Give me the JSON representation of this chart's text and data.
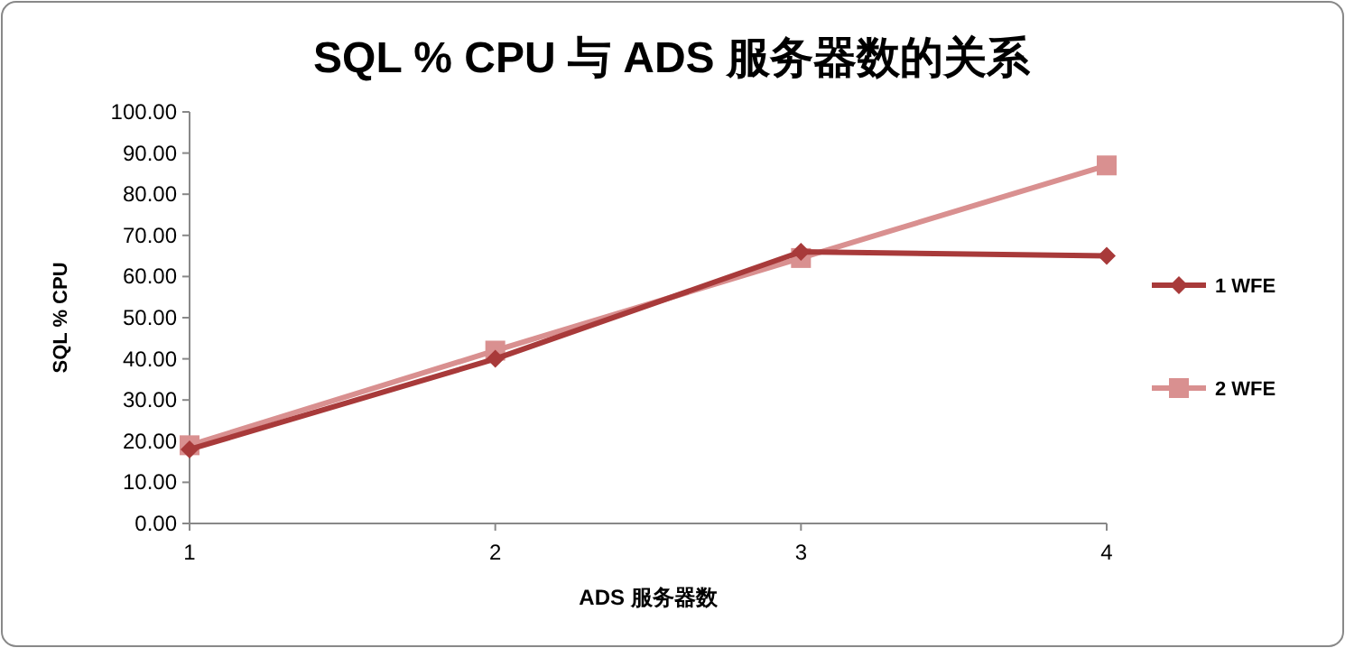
{
  "chart_data": {
    "type": "line",
    "title": "SQL % CPU 与 ADS 服务器数的关系",
    "xlabel": "ADS 服务器数",
    "ylabel": "SQL % CPU",
    "x": [
      1,
      2,
      3,
      4
    ],
    "xlim": [
      1,
      4
    ],
    "xticks": [
      1,
      2,
      3,
      4
    ],
    "ylim": [
      0,
      100
    ],
    "yticks": [
      {
        "value": 0,
        "label": "0.00"
      },
      {
        "value": 10,
        "label": "10.00"
      },
      {
        "value": 20,
        "label": "20.00"
      },
      {
        "value": 30,
        "label": "30.00"
      },
      {
        "value": 40,
        "label": "40.00"
      },
      {
        "value": 50,
        "label": "50.00"
      },
      {
        "value": 60,
        "label": "60.00"
      },
      {
        "value": 70,
        "label": "70.00"
      },
      {
        "value": 80,
        "label": "80.00"
      },
      {
        "value": 90,
        "label": "90.00"
      },
      {
        "value": 100,
        "label": "100.00"
      }
    ],
    "grid": false,
    "legend": "right",
    "series": [
      {
        "name": "1 WFE",
        "color": "#a83a3a",
        "values": [
          18,
          40,
          66,
          65
        ],
        "marker": "diamond"
      },
      {
        "name": "2 WFE",
        "color": "#d99090",
        "values": [
          19,
          42,
          64.5,
          87
        ],
        "marker": "square"
      }
    ]
  }
}
